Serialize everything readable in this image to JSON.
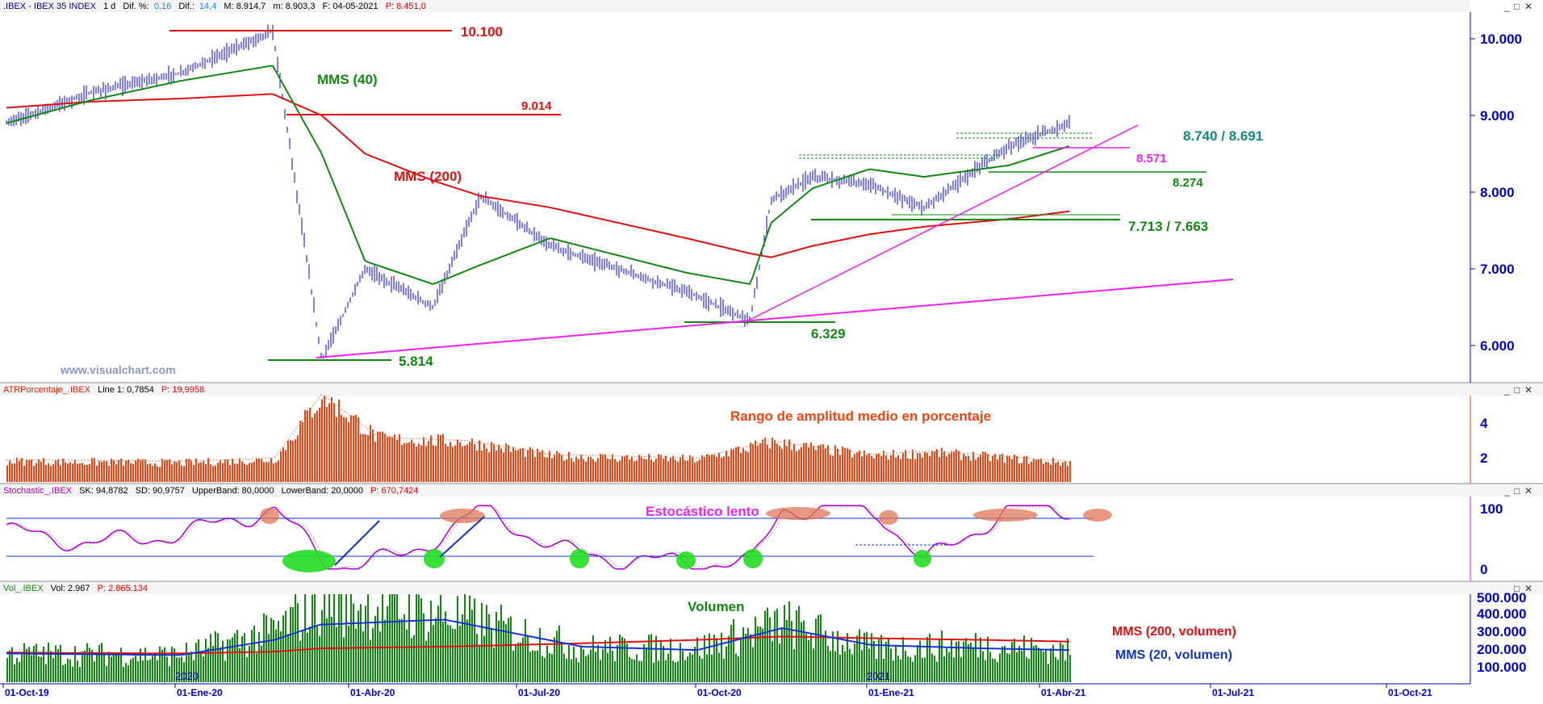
{
  "main": {
    "header": {
      "symbol": ".IBEX - IBEX 35 INDEX",
      "tf": "1 d",
      "dif_pct_label": "Dif. %:",
      "dif_pct": "0,16",
      "dif_label": "Dif.:",
      "dif": "14,4",
      "max": "M: 8.914,7",
      "min": "m: 8.903,3",
      "date": "F: 04-05-2021",
      "price": "P: 8.451,0"
    },
    "y_ticks": [
      "10.000",
      "9.000",
      "8.000",
      "7.000",
      "6.000"
    ],
    "watermark": "www.visualchart.com",
    "annotations": {
      "lvl_10100": "10.100",
      "lvl_9014": "9.014",
      "mms40": "MMS (40)",
      "mms200": "MMS (200)",
      "lvl_8740": "8.740 / 8.691",
      "lvl_8571": "8.571",
      "lvl_8274": "8.274",
      "lvl_7713": "7.713 / 7.663",
      "lvl_6329": "6.329",
      "lvl_5814": "5.814"
    }
  },
  "atr": {
    "header": {
      "name": "ATRPorcentaje_.IBEX",
      "line": "Line 1: 0,7854",
      "p": "P: 19,9958"
    },
    "title": "Rango de amplitud medio en porcentaje",
    "y_ticks": [
      "4",
      "2"
    ]
  },
  "stoch": {
    "header": {
      "name": "Stochastic_.IBEX",
      "sk": "SK: 94,8782",
      "sd": "SD: 90,9757",
      "upper": "UpperBand: 80,0000",
      "lower": "LowerBand: 20,0000",
      "p": "P: 670,7424"
    },
    "title": "Estocástico lento",
    "y_ticks": [
      "100",
      "0"
    ]
  },
  "vol": {
    "header": {
      "name": "Vol_.IBEX",
      "vol": "Vol: 2.967",
      "p": "P: 2.865.134"
    },
    "title": "Volumen",
    "mms200": "MMS (200, volumen)",
    "mms20": "MMS (20, volumen)",
    "y_ticks": [
      "500.000",
      "400.000",
      "300.000",
      "200.000",
      "100.000"
    ],
    "year_marks": [
      "2020",
      "2021"
    ]
  },
  "x_axis": {
    "labels": [
      "01-Oct-19",
      "01-Ene-20",
      "01-Abr-20",
      "01-Jul-20",
      "01-Oct-20",
      "01-Ene-21",
      "01-Abr-21",
      "01-Jul-21",
      "01-Oct-21"
    ]
  },
  "colors": {
    "price": "#0000cc",
    "mms40": "#118811",
    "mms200": "#dd1111",
    "trend": "#ee22ee",
    "atr": "#ee4411",
    "vol": "#118811",
    "vol_mms20": "#1133cc",
    "axis": "#0000aa"
  },
  "chart_data": [
    {
      "type": "line",
      "title": "",
      "x": [
        "2019-10-01",
        "2019-11-15",
        "2020-01-01",
        "2020-02-19",
        "2020-03-16",
        "2020-04-08",
        "2020-05-14",
        "2020-06-08",
        "2020-07-15",
        "2020-09-25",
        "2020-10-29",
        "2020-11-09",
        "2020-12-01",
        "2020-12-31",
        "2021-01-29",
        "2021-03-15",
        "2021-04-16"
      ],
      "series": [
        {
          "name": "",
          "values": [
            8900,
            9300,
            9550,
            10100,
            5814,
            7000,
            6500,
            7950,
            7300,
            6700,
            6329,
            7900,
            8200,
            8100,
            7800,
            8600,
            8900
          ]
        },
        {
          "name": "MMS (40)",
          "values": [
            8900,
            9200,
            9450,
            9650,
            8500,
            7100,
            6800,
            7050,
            7400,
            6950,
            6800,
            7600,
            8050,
            8300,
            8200,
            8350,
            8600
          ]
        },
        {
          "name": "MMS (200)",
          "values": [
            9100,
            9180,
            9220,
            9280,
            9000,
            8500,
            8150,
            7950,
            7800,
            7400,
            7200,
            7150,
            7300,
            7450,
            7550,
            7650,
            7750
          ]
        }
      ],
      "levels": [
        10100,
        9014,
        8740,
        8691,
        8571,
        8274,
        7713,
        7663,
        6329,
        5814
      ],
      "ylim": [
        5500,
        10500
      ]
    },
    {
      "type": "bar",
      "title": "Rango de amplitud medio en porcentaje",
      "x": [
        "2019-10-01",
        "2020-01-01",
        "2020-02-20",
        "2020-03-16",
        "2020-04-15",
        "2020-06-01",
        "2020-07-15",
        "2020-10-01",
        "2020-11-09",
        "2021-01-01",
        "2021-02-01",
        "2021-04-16"
      ],
      "values": [
        1.7,
        1.6,
        1.8,
        5.5,
        3.0,
        2.8,
        2.0,
        1.8,
        2.8,
        2.0,
        2.2,
        1.6
      ],
      "ylim": [
        0.5,
        5.5
      ]
    },
    {
      "type": "line",
      "title": "Estocástico lento",
      "bands": [
        80,
        20
      ],
      "x": [
        "2019-10-01",
        "2019-11-15",
        "2020-01-01",
        "2020-02-20",
        "2020-03-20",
        "2020-04-30",
        "2020-06-08",
        "2020-07-20",
        "2020-08-20",
        "2020-09-25",
        "2020-10-30",
        "2020-11-15",
        "2020-12-10",
        "2021-01-05",
        "2021-01-29",
        "2021-03-15",
        "2021-04-16"
      ],
      "series": [
        {
          "name": "",
          "values": [
            60,
            40,
            55,
            95,
            5,
            20,
            95,
            30,
            15,
            10,
            10,
            95,
            95,
            90,
            10,
            95,
            95
          ]
        }
      ],
      "ylim": [
        -10,
        110
      ]
    },
    {
      "type": "bar",
      "title": "Volumen",
      "x": [
        "2019-10-01",
        "2020-01-01",
        "2020-02-20",
        "2020-03-15",
        "2020-05-20",
        "2020-08-01",
        "2020-10-01",
        "2020-11-15",
        "2021-01-01",
        "2021-03-01",
        "2021-04-16"
      ],
      "values": [
        170000,
        160000,
        300000,
        480000,
        400000,
        200000,
        200000,
        350000,
        200000,
        220000,
        180000
      ],
      "series": [
        {
          "name": "MMS (200, volumen)",
          "values": [
            175000,
            170000,
            180000,
            200000,
            210000,
            230000,
            250000,
            270000,
            260000,
            250000,
            240000
          ]
        },
        {
          "name": "MMS (20, volumen)",
          "values": [
            170000,
            160000,
            250000,
            340000,
            370000,
            210000,
            190000,
            320000,
            220000,
            200000,
            190000
          ]
        }
      ],
      "ylim": [
        0,
        520000
      ]
    }
  ]
}
